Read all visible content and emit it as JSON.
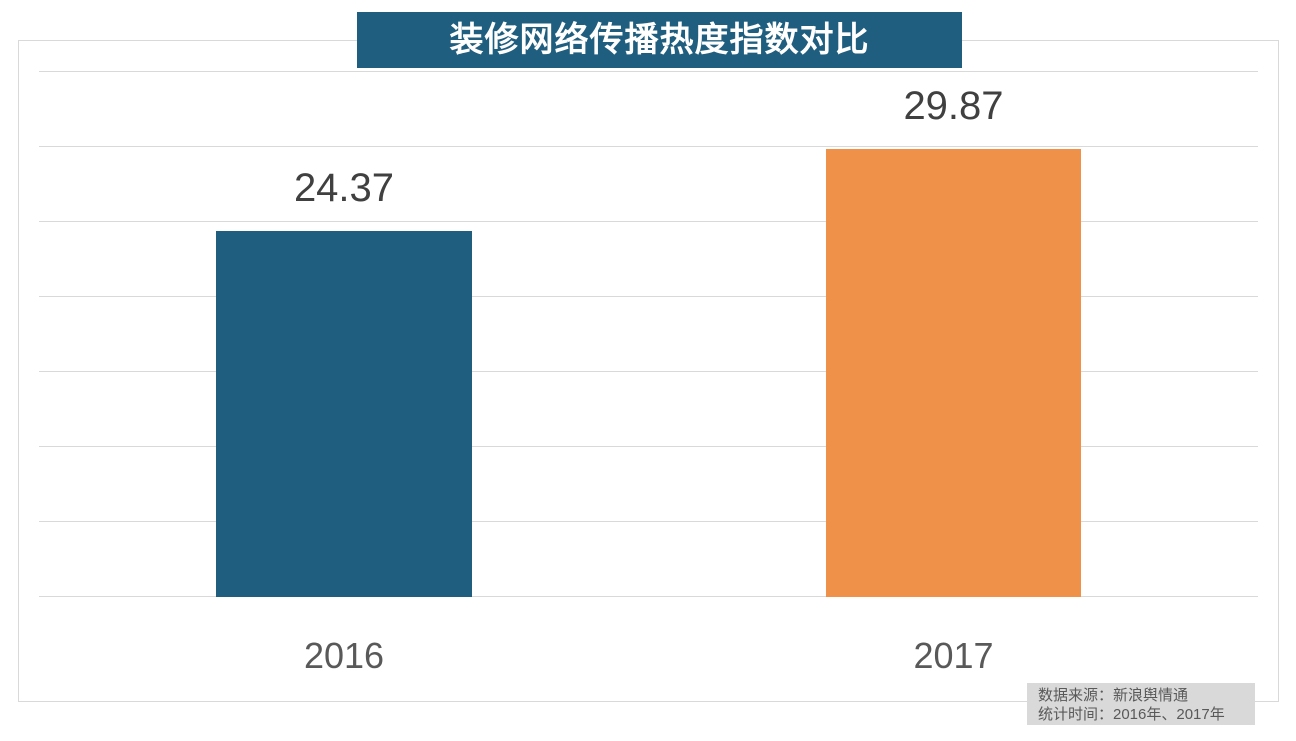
{
  "chart_data": {
    "type": "bar",
    "title": "装修网络传播热度指数对比",
    "categories": [
      "2016",
      "2017"
    ],
    "values": [
      24.37,
      29.87
    ],
    "value_labels": [
      "24.37",
      "29.87"
    ],
    "bar_colors": [
      "#1f5e7e",
      "#f0914a"
    ],
    "xlabel": "",
    "ylabel": "",
    "ylim": [
      0,
      35
    ],
    "grid_step": 5,
    "grid_on": true,
    "legend_position": "none",
    "y_axis_tick_labels_visible": false
  },
  "title_banner": {
    "text": "装修网络传播热度指数对比",
    "bg_color": "#1f5e7e",
    "text_color": "#ffffff"
  },
  "source_box": {
    "line1": "数据来源：新浪舆情通",
    "line2": "统计时间：2016年、2017年",
    "bg_color": "#d9d9d9",
    "text_color": "#595959"
  },
  "colors": {
    "background": "#ffffff",
    "gridline": "#d9d9d9",
    "chart_border": "#d9d9d9",
    "value_label_text": "#404040",
    "category_label_text": "#595959"
  }
}
